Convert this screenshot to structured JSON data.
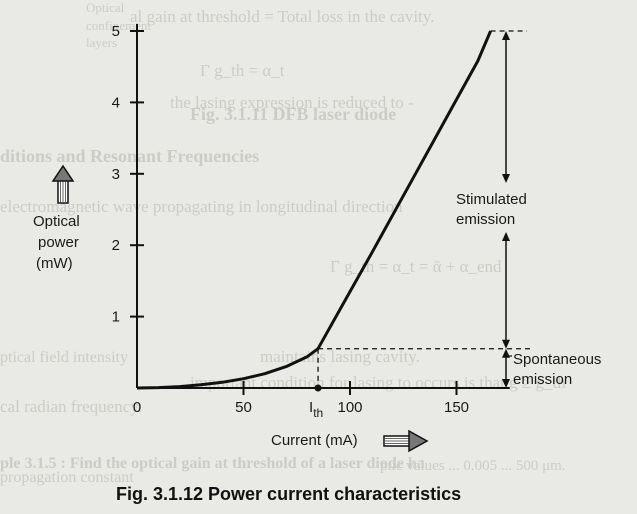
{
  "chart_data": {
    "type": "line",
    "title": "",
    "caption": "Fig. 3.1.12 Power current characteristics",
    "xlabel": "Current (mA)",
    "ylabel_lines": [
      "Optical",
      "power",
      "(mW)"
    ],
    "xlim": [
      0,
      175
    ],
    "ylim": [
      0,
      5.1
    ],
    "x_ticks": [
      0,
      50,
      100,
      150
    ],
    "y_ticks": [
      1,
      2,
      3,
      4,
      5
    ],
    "x_tick_labels": [
      "0",
      "50",
      "100",
      "150"
    ],
    "y_tick_labels": [
      "1",
      "2",
      "3",
      "4",
      "5"
    ],
    "threshold": {
      "x": 85,
      "y": 0.55,
      "label_main": "I",
      "label_sub": "th"
    },
    "series": [
      {
        "x": [
          0,
          10,
          20,
          30,
          40,
          50,
          60,
          70,
          80,
          85,
          100,
          110,
          120,
          130,
          140,
          150,
          160,
          166
        ],
        "y": [
          0,
          0.005,
          0.02,
          0.045,
          0.08,
          0.13,
          0.2,
          0.3,
          0.44,
          0.55,
          1.35,
          1.88,
          2.42,
          2.96,
          3.5,
          4.04,
          4.58,
          5.0
        ]
      }
    ],
    "annotations": {
      "stimulated": [
        "Stimulated",
        "emission"
      ],
      "spontaneous": [
        "Spontaneous",
        "emission"
      ]
    },
    "grid": false
  },
  "background_text": {
    "line1": "Optical",
    "line2": "confinement",
    "line3": "layers",
    "eq1": "al gain at threshold = Total loss in the cavity.",
    "eq2": "Γ g_th = α_t",
    "eq3": "the lasing expression is reduced to -",
    "fig": "Fig. 3.1.11 DFB laser diode",
    "head": "ditions and Resonant Frequencies",
    "em": "electromagnetic wave propagating in longitudinal direction",
    "eq4": "Γ g_th = α_t = ᾱ + α_end",
    "cav": "maintains lasing cavity.",
    "imp": "important condition for lasing to occurs is that g ≥ g_th",
    "opt": "ptical field intensity",
    "rad": "cal radian frequency.",
    "ex": "ple 3.1.5 : Find the optical gain at threshold of a laser diode ha",
    "prop": "propagation constant",
    "last": "ptic values ... 0.005 ... 500 μm."
  }
}
